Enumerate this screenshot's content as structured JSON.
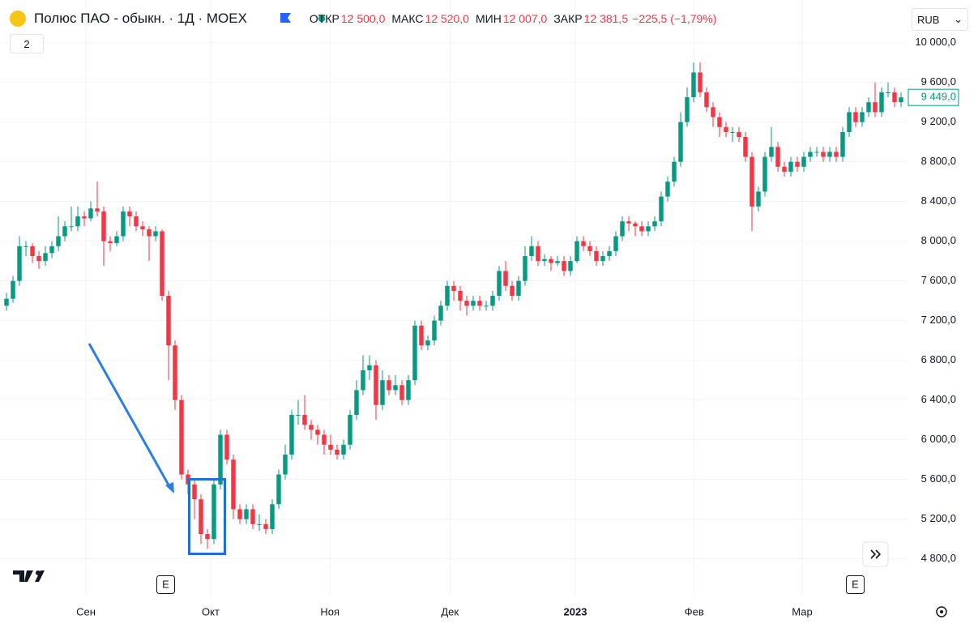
{
  "header": {
    "title": "Полюс ПАО - обыкн. · 1Д · MOEX",
    "open_label": "ОТКР",
    "open": "12 500,0",
    "high_label": "МАКС",
    "high": "12 520,0",
    "low_label": "МИН",
    "low": "12 007,0",
    "close_label": "ЗАКР",
    "close": "12 381,5",
    "change": "−225,5 (−1,79%)",
    "currency": "RUB",
    "indicators": "2",
    "events": [
      "E",
      "E"
    ]
  },
  "chart_data": {
    "type": "candlestick",
    "up_color": "#089981",
    "down_color": "#f23645",
    "grid": true,
    "xlim": [
      -1,
      139
    ],
    "xticks": [
      {
        "value": 12.25,
        "label": "Сен"
      },
      {
        "value": 31.5,
        "label": "Окт"
      },
      {
        "value": 49.9,
        "label": "Ноя"
      },
      {
        "value": 68.4,
        "label": "Дек"
      },
      {
        "value": 87.75,
        "label": "2023"
      },
      {
        "value": 106.1,
        "label": "Фев"
      },
      {
        "value": 122.75,
        "label": "Мар"
      }
    ],
    "ylim": [
      4430,
      10430
    ],
    "yticks": [
      {
        "value": 4800,
        "label": "4 800,0"
      },
      {
        "value": 5200,
        "label": "5 200,0"
      },
      {
        "value": 5600,
        "label": "5 600,0"
      },
      {
        "value": 6000,
        "label": "6 000,0"
      },
      {
        "value": 6400,
        "label": "6 400,0"
      },
      {
        "value": 6800,
        "label": "6 800,0"
      },
      {
        "value": 7200,
        "label": "7 200,0"
      },
      {
        "value": 7600,
        "label": "7 600,0"
      },
      {
        "value": 8000,
        "label": "8 000,0"
      },
      {
        "value": 8400,
        "label": "8 400,0"
      },
      {
        "value": 8800,
        "label": "8 800,0"
      },
      {
        "value": 9200,
        "label": "9 200,0"
      },
      {
        "value": 9600,
        "label": "9 600,0"
      },
      {
        "value": 10000,
        "label": "10 000,0"
      }
    ],
    "last_label": "9 449,0",
    "open": [
      7350,
      7420,
      7600,
      7950,
      7950,
      7850,
      7800,
      7880,
      7950,
      8050,
      8150,
      8150,
      8250,
      8230,
      8330,
      8300,
      8000,
      7980,
      8050,
      8300,
      8250,
      8150,
      8120,
      8050,
      8100,
      7450,
      6950,
      6400,
      5650,
      5550,
      5400,
      5050,
      5000,
      5550,
      6050,
      5800,
      5300,
      5200,
      5300,
      5150,
      5150,
      5100,
      5350,
      5650,
      5850,
      6250,
      6250,
      6150,
      6100,
      6050,
      5950,
      5900,
      5850,
      5950,
      6250,
      6500,
      6700,
      6750,
      6350,
      6600,
      6500,
      6550,
      6400,
      6600,
      7150,
      6950,
      7000,
      7200,
      7350,
      7550,
      7500,
      7400,
      7350,
      7400,
      7350,
      7350,
      7450,
      7700,
      7550,
      7450,
      7600,
      7850,
      7950,
      7800,
      7820,
      7780,
      7800,
      7700,
      7800,
      8000,
      7950,
      7900,
      7800,
      7850,
      7900,
      8050,
      8200,
      8180,
      8150,
      8100,
      8150,
      8200,
      8450,
      8600,
      8800,
      9200,
      9450,
      9700,
      9500,
      9350,
      9250,
      9150,
      9100,
      9100,
      9050,
      8850,
      8350,
      8500,
      8850,
      8950,
      8750,
      8700,
      8800,
      8750,
      8850,
      8900,
      8900,
      8850,
      8900,
      8850,
      9100,
      9300,
      9200,
      9300,
      9400,
      9300,
      9500,
      9500,
      9400
    ],
    "high": [
      7480,
      7650,
      8050,
      8000,
      7980,
      7900,
      7950,
      8000,
      8250,
      8200,
      8350,
      8350,
      8300,
      8400,
      8600,
      8350,
      8050,
      8100,
      8350,
      8350,
      8300,
      8200,
      8150,
      8150,
      8120,
      7500,
      7000,
      6450,
      5700,
      5600,
      5450,
      5100,
      5600,
      6100,
      6100,
      5850,
      5350,
      5350,
      5350,
      5250,
      5200,
      5400,
      5700,
      5950,
      6300,
      6400,
      6450,
      6200,
      6150,
      6100,
      6050,
      5950,
      6000,
      6300,
      6600,
      6850,
      6850,
      6800,
      6700,
      6650,
      6650,
      6600,
      6650,
      7200,
      7200,
      7050,
      7250,
      7400,
      7600,
      7600,
      7550,
      7450,
      7450,
      7450,
      7400,
      7500,
      7750,
      7800,
      7600,
      7650,
      7950,
      8050,
      8000,
      7870,
      7850,
      7850,
      7850,
      7850,
      8050,
      8050,
      8000,
      7950,
      7900,
      7950,
      8100,
      8250,
      8250,
      8200,
      8200,
      8200,
      8250,
      8500,
      8650,
      8850,
      9300,
      9550,
      9800,
      9800,
      9550,
      9400,
      9300,
      9200,
      9150,
      9150,
      9100,
      8900,
      8550,
      8900,
      9150,
      9000,
      8800,
      8850,
      8850,
      8900,
      8950,
      8950,
      8950,
      8950,
      8950,
      9150,
      9350,
      9350,
      9350,
      9450,
      9600,
      9550,
      9600,
      9550,
      9500
    ],
    "low": [
      7300,
      7380,
      7550,
      7850,
      7780,
      7720,
      7750,
      7830,
      7900,
      8000,
      8100,
      8100,
      8150,
      8200,
      8250,
      7750,
      7900,
      7950,
      8000,
      8150,
      8100,
      8050,
      7800,
      8000,
      7400,
      6600,
      6300,
      5600,
      5450,
      5200,
      4950,
      4900,
      4950,
      5500,
      5750,
      5200,
      5150,
      5150,
      5100,
      5080,
      5050,
      5050,
      5300,
      5600,
      5800,
      6150,
      6100,
      6000,
      5950,
      5850,
      5850,
      5800,
      5800,
      5900,
      6200,
      6450,
      6600,
      6200,
      6300,
      6450,
      6450,
      6350,
      6350,
      6550,
      6900,
      6900,
      6950,
      7150,
      7300,
      7400,
      7300,
      7250,
      7300,
      7300,
      7300,
      7300,
      7400,
      7500,
      7400,
      7400,
      7550,
      7800,
      7750,
      7750,
      7700,
      7750,
      7650,
      7650,
      7780,
      7900,
      7850,
      7750,
      7750,
      7800,
      7850,
      8000,
      8100,
      8050,
      8050,
      8050,
      8100,
      8150,
      8400,
      8550,
      8750,
      9150,
      9400,
      9450,
      9300,
      9150,
      9050,
      9050,
      9000,
      9000,
      8800,
      8100,
      8300,
      8450,
      8800,
      8700,
      8650,
      8650,
      8700,
      8700,
      8800,
      8850,
      8800,
      8800,
      8800,
      8800,
      9050,
      9150,
      9150,
      9250,
      9250,
      9250,
      9450,
      9350,
      9350
    ],
    "close": [
      7420,
      7600,
      7950,
      7950,
      7850,
      7800,
      7880,
      7950,
      8050,
      8150,
      8150,
      8250,
      8230,
      8330,
      8300,
      8000,
      7980,
      8050,
      8300,
      8250,
      8150,
      8120,
      8050,
      8100,
      7450,
      6950,
      6400,
      5650,
      5550,
      5400,
      5050,
      5000,
      5550,
      6050,
      5800,
      5300,
      5200,
      5300,
      5150,
      5150,
      5100,
      5350,
      5650,
      5850,
      6250,
      6250,
      6150,
      6100,
      6050,
      5950,
      5900,
      5850,
      5950,
      6250,
      6500,
      6700,
      6750,
      6350,
      6600,
      6500,
      6550,
      6400,
      6600,
      7150,
      6950,
      7000,
      7200,
      7350,
      7550,
      7500,
      7400,
      7350,
      7400,
      7350,
      7350,
      7450,
      7700,
      7550,
      7450,
      7600,
      7850,
      7950,
      7800,
      7820,
      7780,
      7800,
      7700,
      7800,
      8000,
      7950,
      7900,
      7800,
      7850,
      7900,
      8050,
      8200,
      8180,
      8150,
      8100,
      8150,
      8200,
      8450,
      8600,
      8800,
      9200,
      9450,
      9700,
      9500,
      9350,
      9250,
      9150,
      9100,
      9100,
      9050,
      8850,
      8350,
      8500,
      8850,
      8950,
      8750,
      8700,
      8800,
      8750,
      8850,
      8900,
      8900,
      8850,
      8900,
      8850,
      9100,
      9300,
      9200,
      9300,
      9400,
      9300,
      9500,
      9500,
      9400,
      9449
    ]
  }
}
